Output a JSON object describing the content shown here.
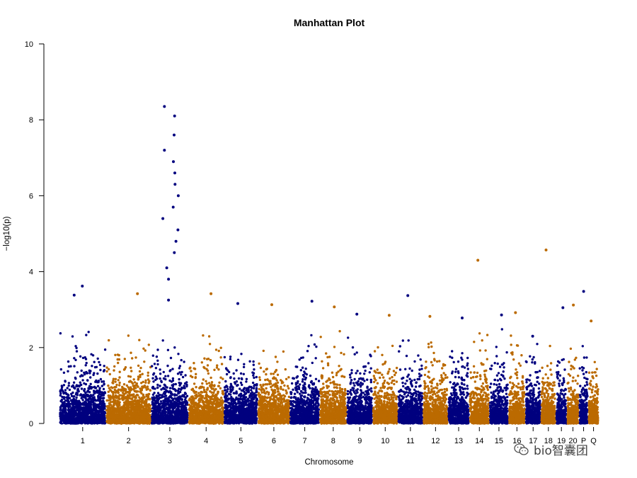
{
  "chart_data": {
    "type": "scatter",
    "title": "Manhattan Plot",
    "xlabel": "Chromosome",
    "ylabel": "−log10(p)",
    "ylim": [
      0,
      10
    ],
    "yticks": [
      0,
      2,
      4,
      6,
      8,
      10
    ],
    "grid": false,
    "legend": "none",
    "colors": [
      "#00007f",
      "#bb6a00"
    ],
    "chromosomes": [
      {
        "label": "1",
        "length": 248
      },
      {
        "label": "2",
        "length": 242
      },
      {
        "label": "3",
        "length": 198
      },
      {
        "label": "4",
        "length": 190
      },
      {
        "label": "5",
        "length": 181
      },
      {
        "label": "6",
        "length": 171
      },
      {
        "label": "7",
        "length": 159
      },
      {
        "label": "8",
        "length": 145
      },
      {
        "label": "9",
        "length": 138
      },
      {
        "label": "10",
        "length": 134
      },
      {
        "label": "11",
        "length": 135
      },
      {
        "label": "12",
        "length": 133
      },
      {
        "label": "13",
        "length": 114
      },
      {
        "label": "14",
        "length": 107
      },
      {
        "label": "15",
        "length": 102
      },
      {
        "label": "16",
        "length": 90
      },
      {
        "label": "17",
        "length": 83
      },
      {
        "label": "18",
        "length": 80
      },
      {
        "label": "19",
        "length": 59
      },
      {
        "label": "20",
        "length": 64
      },
      {
        "label": "P",
        "length": 50
      },
      {
        "label": "Q",
        "length": 56
      }
    ],
    "notable_points": [
      {
        "chr": "1",
        "y": 3.62
      },
      {
        "chr": "1",
        "y": 3.38
      },
      {
        "chr": "2",
        "y": 3.42
      },
      {
        "chr": "3",
        "y": 8.35
      },
      {
        "chr": "3",
        "y": 8.1
      },
      {
        "chr": "3",
        "y": 7.6
      },
      {
        "chr": "3",
        "y": 7.2
      },
      {
        "chr": "3",
        "y": 6.9
      },
      {
        "chr": "3",
        "y": 6.6
      },
      {
        "chr": "3",
        "y": 6.3
      },
      {
        "chr": "3",
        "y": 6.0
      },
      {
        "chr": "3",
        "y": 5.7
      },
      {
        "chr": "3",
        "y": 5.4
      },
      {
        "chr": "3",
        "y": 5.1
      },
      {
        "chr": "3",
        "y": 4.8
      },
      {
        "chr": "3",
        "y": 4.5
      },
      {
        "chr": "3",
        "y": 4.1
      },
      {
        "chr": "3",
        "y": 3.8
      },
      {
        "chr": "3",
        "y": 3.25
      },
      {
        "chr": "4",
        "y": 3.42
      },
      {
        "chr": "5",
        "y": 3.16
      },
      {
        "chr": "6",
        "y": 3.13
      },
      {
        "chr": "7",
        "y": 3.22
      },
      {
        "chr": "8",
        "y": 3.07
      },
      {
        "chr": "9",
        "y": 2.88
      },
      {
        "chr": "10",
        "y": 2.85
      },
      {
        "chr": "11",
        "y": 3.37
      },
      {
        "chr": "12",
        "y": 2.82
      },
      {
        "chr": "13",
        "y": 2.78
      },
      {
        "chr": "14",
        "y": 4.3
      },
      {
        "chr": "15",
        "y": 2.86
      },
      {
        "chr": "16",
        "y": 2.92
      },
      {
        "chr": "17",
        "y": 2.3
      },
      {
        "chr": "18",
        "y": 4.57
      },
      {
        "chr": "19",
        "y": 3.05
      },
      {
        "chr": "20",
        "y": 3.12
      },
      {
        "chr": "P",
        "y": 3.48
      },
      {
        "chr": "Q",
        "y": 2.7
      }
    ],
    "background_density": {
      "points_per_unit": 5.2,
      "typical_max": 2.5
    }
  },
  "watermark": {
    "text": "bio智囊团",
    "icon": "wechat-icon"
  }
}
